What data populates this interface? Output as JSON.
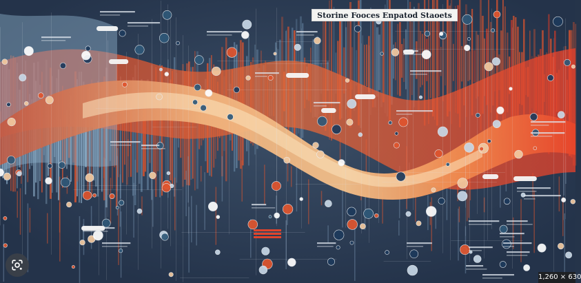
{
  "image": {
    "title": "Storine Fooces Enpatod Staoets",
    "colors": {
      "background": "#25344a",
      "orange": "#e0552e",
      "peach": "#efb07a",
      "blue": "#8fb1cc",
      "dot_dark": "#1d3a5c",
      "text_light": "#dfe6ee"
    }
  },
  "overlay": {
    "lens_icon": "google-lens-icon",
    "dimensions": "1,260 × 630"
  }
}
